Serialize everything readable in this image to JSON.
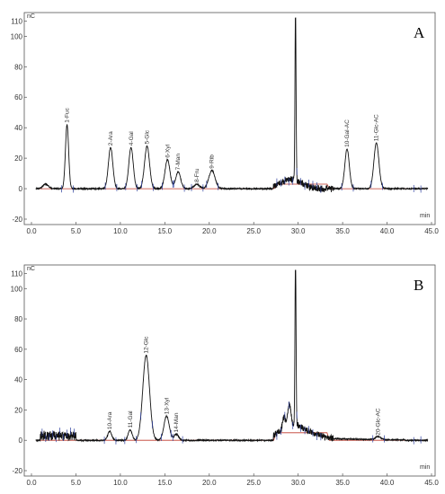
{
  "chart_data": [
    {
      "type": "line",
      "panel_label": "A",
      "y_unit": "nC",
      "x_unit": "min",
      "xlim": [
        0,
        45
      ],
      "ylim": [
        -20,
        110
      ],
      "x_ticks": [
        0.0,
        5.0,
        10.0,
        15.0,
        20.0,
        25.0,
        30.0,
        35.0,
        40.0,
        45.0
      ],
      "x_tick_labels": [
        "0.0",
        "5.0",
        "10.0",
        "15.0",
        "20.0",
        "25.0",
        "30.0",
        "35.0",
        "40.0",
        "45.0"
      ],
      "y_ticks": [
        -20,
        0,
        20,
        40,
        60,
        80,
        100,
        110
      ],
      "y_tick_labels": [
        "-20",
        "0",
        "20",
        "40",
        "60",
        "80",
        "100",
        "110"
      ],
      "peaks": [
        {
          "label": "1-Fuc",
          "rt": 4.0,
          "height": 42,
          "width": 0.18
        },
        {
          "label": "2-Ara",
          "rt": 8.9,
          "height": 27,
          "width": 0.25
        },
        {
          "label": "4-Gal",
          "rt": 11.2,
          "height": 27,
          "width": 0.25
        },
        {
          "label": "5-Glc",
          "rt": 13.0,
          "height": 28,
          "width": 0.28
        },
        {
          "label": "6-Xyl",
          "rt": 15.3,
          "height": 19,
          "width": 0.28
        },
        {
          "label": "7-Man",
          "rt": 16.5,
          "height": 11,
          "width": 0.28
        },
        {
          "label": "8-Fru",
          "rt": 18.6,
          "height": 3,
          "width": 0.3
        },
        {
          "label": "9-Rib",
          "rt": 20.3,
          "height": 12,
          "width": 0.35
        },
        {
          "label": "10-Gal-AC",
          "rt": 35.5,
          "height": 26,
          "width": 0.25
        },
        {
          "label": "11-Glc-AC",
          "rt": 38.8,
          "height": 30,
          "width": 0.28
        }
      ],
      "unlabeled_peaks": [
        {
          "rt": 1.6,
          "height": 3,
          "width": 0.3
        },
        {
          "rt": 29.7,
          "height": 112,
          "width": 0.06
        }
      ]
    },
    {
      "type": "line",
      "panel_label": "B",
      "y_unit": "nC",
      "x_unit": "min",
      "xlim": [
        0,
        45
      ],
      "ylim": [
        -20,
        110
      ],
      "x_ticks": [
        0.0,
        5.0,
        10.0,
        15.0,
        20.0,
        25.0,
        30.0,
        35.0,
        40.0,
        45.0
      ],
      "x_tick_labels": [
        "0.0",
        "5.0",
        "10.0",
        "15.0",
        "20.0",
        "25.0",
        "30.0",
        "35.0",
        "40.0",
        "45.0"
      ],
      "y_ticks": [
        -20,
        0,
        20,
        40,
        60,
        80,
        100,
        110
      ],
      "y_tick_labels": [
        "-20",
        "0",
        "20",
        "40",
        "60",
        "80",
        "100",
        "110"
      ],
      "peaks": [
        {
          "label": "10-Ara",
          "rt": 8.8,
          "height": 6,
          "width": 0.22
        },
        {
          "label": "11-Gal",
          "rt": 11.1,
          "height": 7,
          "width": 0.22
        },
        {
          "label": "12-Glc",
          "rt": 12.9,
          "height": 56,
          "width": 0.38
        },
        {
          "label": "13-Xyl",
          "rt": 15.2,
          "height": 16,
          "width": 0.3
        },
        {
          "label": "14-Man",
          "rt": 16.3,
          "height": 4,
          "width": 0.25
        },
        {
          "label": "20-Glc-AC",
          "rt": 39.0,
          "height": 2,
          "width": 0.3
        }
      ],
      "unlabeled_peaks": [
        {
          "rt": 29.7,
          "height": 112,
          "width": 0.06
        },
        {
          "rt": 29.0,
          "height": 14,
          "width": 0.18
        },
        {
          "rt": 28.4,
          "height": 8,
          "width": 0.15
        }
      ]
    }
  ]
}
